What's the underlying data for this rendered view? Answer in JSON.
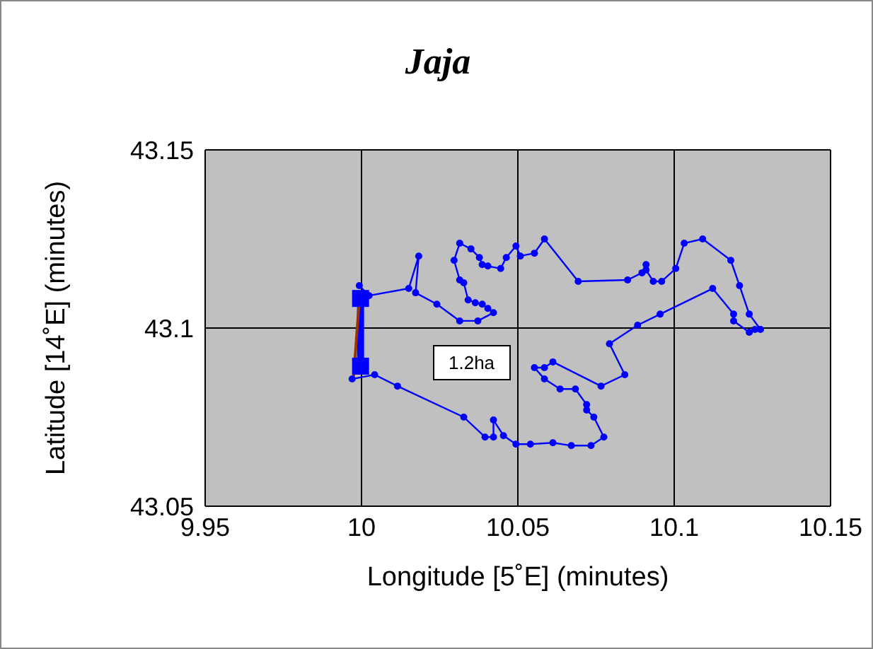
{
  "chart_data": {
    "type": "line",
    "title": "Jaja",
    "xlabel": "Longitude [5˚E] (minutes)",
    "ylabel": "Latitude [14˚E] (minutes)",
    "xlim": [
      9.95,
      10.15
    ],
    "xticks": [
      9.95,
      10,
      10.05,
      10.1,
      10.15
    ],
    "ylim": [
      43.05,
      43.15
    ],
    "yticks": [
      43.05,
      43.1,
      43.15
    ],
    "grid": true,
    "annotations": [
      "1.2ha"
    ],
    "series": [
      {
        "color": "#0000ff",
        "marker": "circle",
        "x": [
          9.9993,
          10.0024,
          10.0151,
          10.0183,
          10.0173,
          10.0241,
          10.0314,
          10.0372,
          10.0422,
          10.0404,
          10.0386,
          10.0364,
          10.0341,
          10.0327,
          10.0314,
          10.0296,
          10.0314,
          10.035,
          10.0377,
          10.0386,
          10.0404,
          10.0445,
          10.0463,
          10.0494,
          10.0508,
          10.0553,
          10.0585,
          10.0693,
          10.0851,
          10.0897,
          10.091,
          10.091,
          10.0933,
          10.096,
          10.1005,
          10.1032,
          10.1091,
          10.1181,
          10.1209,
          10.124,
          10.1276,
          10.1258,
          10.124,
          10.119,
          10.119,
          10.1123,
          10.0955,
          10.0883,
          10.0793,
          10.0842,
          10.0766,
          10.0612,
          10.0585,
          10.0553,
          10.0585,
          10.0635,
          10.0684,
          10.072,
          10.072,
          10.0743,
          10.0775,
          10.0734,
          10.0671,
          10.0612,
          10.054,
          10.0494,
          10.0454,
          10.0422,
          10.0422,
          10.0395,
          10.0327,
          10.0115,
          10.0042,
          9.997
        ],
        "values": [
          43.1119,
          43.1091,
          43.1111,
          43.1202,
          43.1099,
          43.1067,
          43.102,
          43.102,
          43.1043,
          43.1055,
          43.1067,
          43.1071,
          43.1079,
          43.1127,
          43.1135,
          43.119,
          43.1238,
          43.1222,
          43.1198,
          43.1178,
          43.1174,
          43.1167,
          43.1198,
          43.123,
          43.1202,
          43.121,
          43.125,
          43.1131,
          43.1135,
          43.1155,
          43.1178,
          43.1163,
          43.1131,
          43.1131,
          43.1167,
          43.1238,
          43.125,
          43.119,
          43.1119,
          43.1039,
          43.0996,
          43.0996,
          43.0988,
          43.102,
          43.1039,
          43.1111,
          43.1039,
          43.1008,
          43.0956,
          43.0869,
          43.0837,
          43.0905,
          43.0889,
          43.0889,
          43.0857,
          43.0829,
          43.0829,
          43.0785,
          43.077,
          43.075,
          43.0694,
          43.067,
          43.067,
          43.0678,
          43.0674,
          43.0674,
          43.0698,
          43.0742,
          43.0694,
          43.0694,
          43.075,
          43.0837,
          43.0869,
          43.0857
        ]
      },
      {
        "color": "#993300",
        "marker": "none",
        "x": [
          9.9975,
          9.9993
        ],
        "values": [
          43.0865,
          43.1079
        ]
      },
      {
        "color": "#0000ff",
        "marker": "square",
        "x": [
          9.9997,
          9.9997
        ],
        "values": [
          43.0893,
          43.1083
        ]
      }
    ]
  }
}
